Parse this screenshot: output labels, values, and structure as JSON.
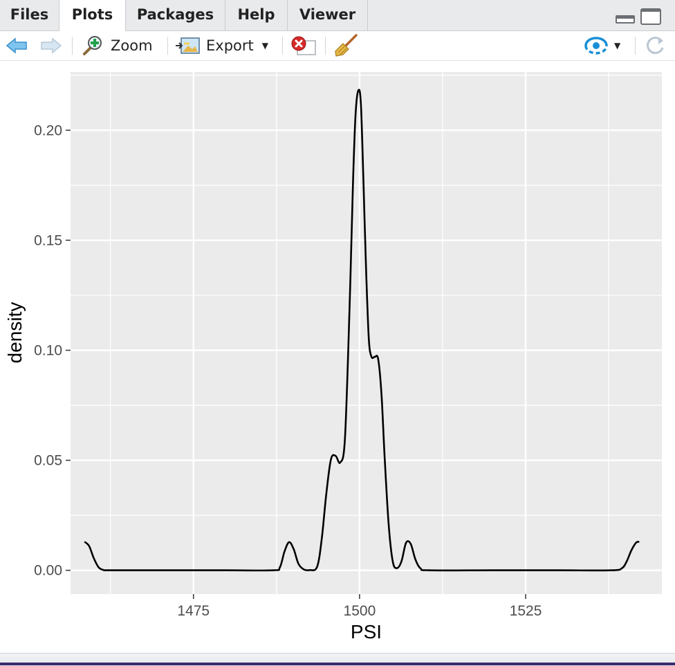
{
  "tabs": [
    {
      "label": "Files",
      "active": false
    },
    {
      "label": "Plots",
      "active": true
    },
    {
      "label": "Packages",
      "active": false
    },
    {
      "label": "Help",
      "active": false
    },
    {
      "label": "Viewer",
      "active": false
    }
  ],
  "toolbar": {
    "zoom_label": "Zoom",
    "export_label": "Export",
    "icons": [
      "arrow-left-icon",
      "arrow-right-icon",
      "zoom-icon",
      "export-icon",
      "remove-plot-icon",
      "broom-icon",
      "publish-icon",
      "refresh-icon"
    ]
  },
  "colors": {
    "panel_bg": "#ebebeb",
    "grid": "#ffffff",
    "line": "#000000",
    "accent_blue": "#1a8fd6"
  },
  "chart_data": {
    "type": "line",
    "title": "",
    "xlabel": "PSI",
    "ylabel": "density",
    "xlim": [
      1456.5,
      1545.5
    ],
    "ylim": [
      -0.0108,
      0.2265
    ],
    "x_ticks": [
      1475,
      1500,
      1525
    ],
    "x_tick_labels": [
      "1475",
      "1500",
      "1525"
    ],
    "y_ticks": [
      0.0,
      0.05,
      0.1,
      0.15,
      0.2
    ],
    "y_tick_labels": [
      "0.00",
      "0.05",
      "0.10",
      "0.15",
      "0.20"
    ],
    "grid": true,
    "series": [
      {
        "x": [
          1458.6,
          1459.3,
          1460.0,
          1460.7,
          1461.4,
          1462.5,
          1470.0,
          1480.0,
          1487.0,
          1488.0,
          1488.7,
          1489.4,
          1490.1,
          1490.8,
          1491.6,
          1492.5,
          1493.6,
          1494.3,
          1495.0,
          1495.7,
          1496.4,
          1497.1,
          1497.8,
          1498.5,
          1499.0,
          1499.4,
          1499.8,
          1500.2,
          1500.6,
          1501.0,
          1501.4,
          1501.8,
          1502.3,
          1502.8,
          1503.3,
          1503.8,
          1504.4,
          1505.0,
          1505.6,
          1506.3,
          1507.0,
          1507.7,
          1508.4,
          1509.2,
          1510.5,
          1520.0,
          1530.0,
          1538.0,
          1539.5,
          1540.2,
          1540.9,
          1541.6,
          1542.1
        ],
        "y": [
          0.013,
          0.011,
          0.0055,
          0.0015,
          0.0002,
          0.0,
          0.0,
          0.0,
          0.0,
          0.0013,
          0.0085,
          0.0128,
          0.0095,
          0.003,
          0.0004,
          0.0001,
          0.0015,
          0.014,
          0.035,
          0.0505,
          0.052,
          0.049,
          0.06,
          0.12,
          0.175,
          0.207,
          0.218,
          0.212,
          0.175,
          0.135,
          0.105,
          0.097,
          0.097,
          0.096,
          0.08,
          0.05,
          0.02,
          0.004,
          0.001,
          0.004,
          0.0125,
          0.012,
          0.005,
          0.0008,
          0.0,
          0.0,
          0.0,
          0.0,
          0.001,
          0.004,
          0.009,
          0.0125,
          0.013
        ]
      }
    ]
  }
}
